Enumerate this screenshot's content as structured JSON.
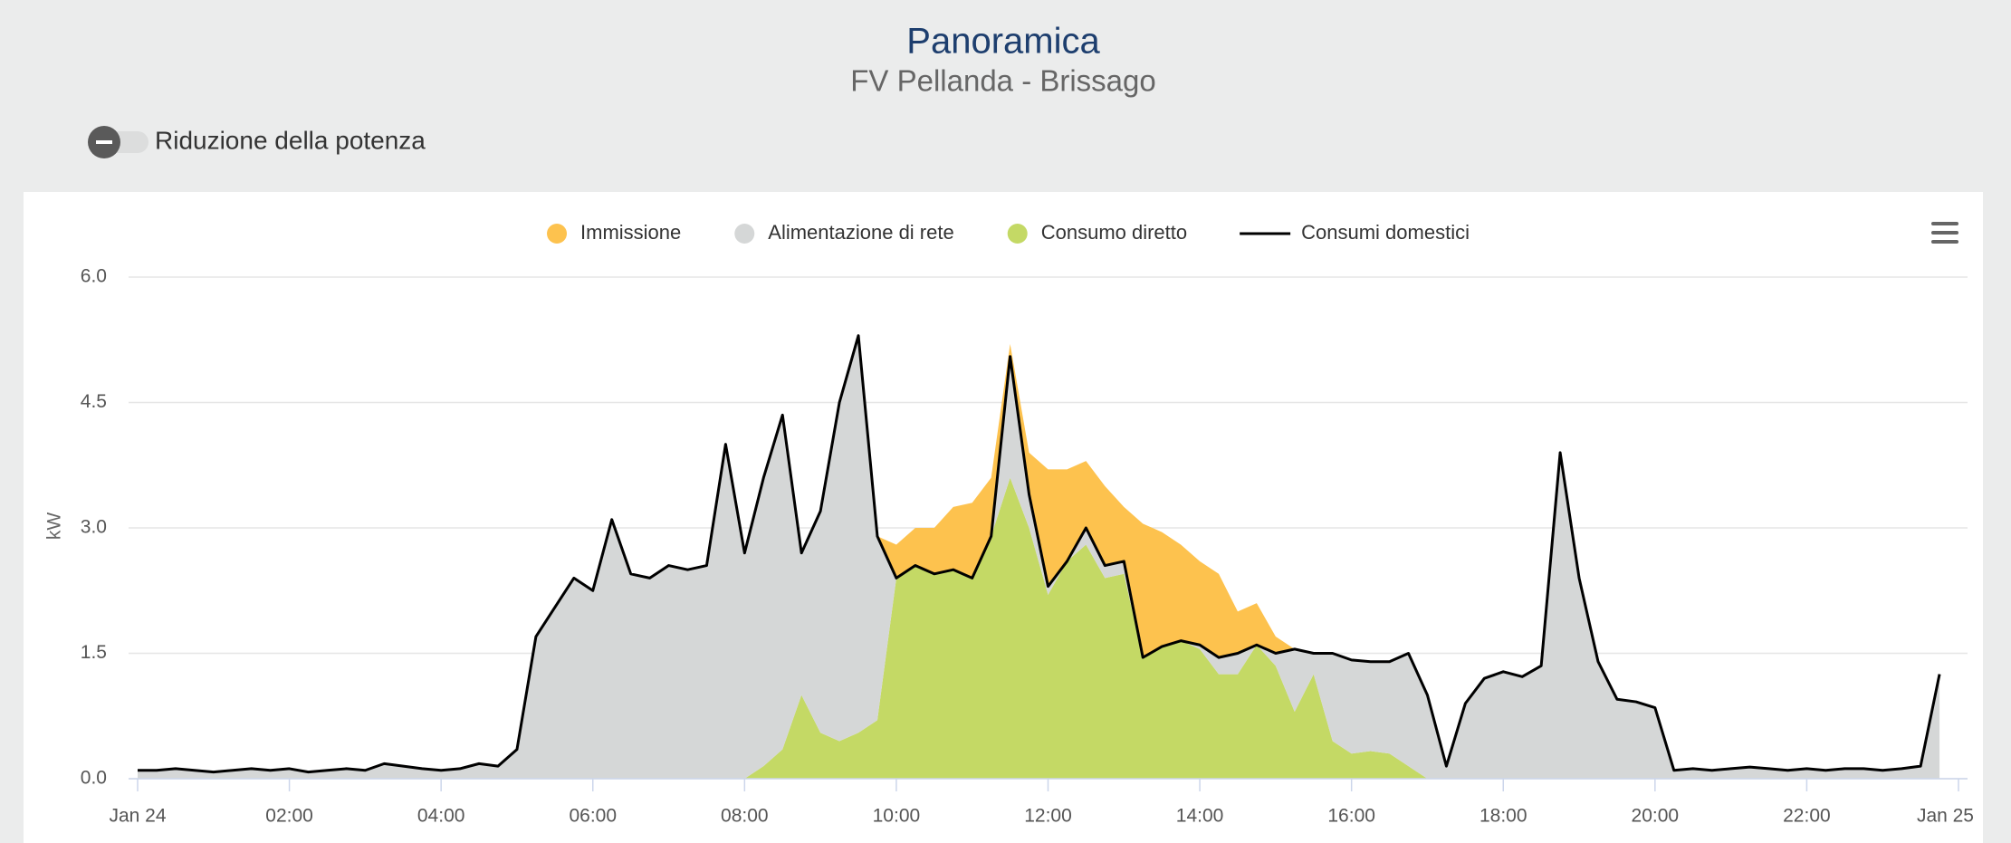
{
  "title": "Panoramica",
  "subtitle": "FV Pellanda - Brissago",
  "toggle_label": "Riduzione della potenza",
  "chart_data": {
    "type": "area",
    "stacked": true,
    "y_label": "kW",
    "grid": true,
    "legend": "top",
    "x": [
      0,
      0.25,
      0.5,
      0.75,
      1,
      1.25,
      1.5,
      1.75,
      2,
      2.25,
      2.5,
      2.75,
      3,
      3.25,
      3.5,
      3.75,
      4,
      4.25,
      4.5,
      4.75,
      5,
      5.25,
      5.5,
      5.75,
      6,
      6.25,
      6.5,
      6.75,
      7,
      7.25,
      7.5,
      7.75,
      8,
      8.25,
      8.5,
      8.75,
      9,
      9.25,
      9.5,
      9.75,
      10,
      10.25,
      10.5,
      10.75,
      11,
      11.25,
      11.5,
      11.75,
      12,
      12.25,
      12.5,
      12.75,
      13,
      13.25,
      13.5,
      13.75,
      14,
      14.25,
      14.5,
      14.75,
      15,
      15.25,
      15.5,
      15.75,
      16,
      16.25,
      16.5,
      16.75,
      17,
      17.25,
      17.5,
      17.75,
      18,
      18.25,
      18.5,
      18.75,
      19,
      19.25,
      19.5,
      19.75,
      20,
      20.25,
      20.5,
      20.75,
      21,
      21.25,
      21.5,
      21.75,
      22,
      22.25,
      22.5,
      22.75,
      23,
      23.25,
      23.5,
      23.75
    ],
    "xlim": [
      0,
      24
    ],
    "xticks": [
      {
        "value": 0,
        "label": "Jan 24"
      },
      {
        "value": 2,
        "label": "02:00"
      },
      {
        "value": 4,
        "label": "04:00"
      },
      {
        "value": 6,
        "label": "06:00"
      },
      {
        "value": 8,
        "label": "08:00"
      },
      {
        "value": 10,
        "label": "10:00"
      },
      {
        "value": 12,
        "label": "12:00"
      },
      {
        "value": 14,
        "label": "14:00"
      },
      {
        "value": 16,
        "label": "16:00"
      },
      {
        "value": 18,
        "label": "18:00"
      },
      {
        "value": 20,
        "label": "20:00"
      },
      {
        "value": 22,
        "label": "22:00"
      },
      {
        "value": 24,
        "label": "Jan 25"
      }
    ],
    "ylim": [
      0,
      6
    ],
    "yticks": [
      {
        "value": 0,
        "label": "0.0"
      },
      1.5,
      {
        "value": 3,
        "label": "3.0"
      },
      4.5,
      {
        "value": 6,
        "label": "6.0"
      }
    ],
    "series": [
      {
        "name": "Immissione",
        "type": "area",
        "color": "#fdc24e",
        "values": [
          0,
          0,
          0,
          0,
          0,
          0,
          0,
          0,
          0,
          0,
          0,
          0,
          0,
          0,
          0,
          0,
          0,
          0,
          0,
          0,
          0,
          0,
          0,
          0,
          0,
          0,
          0,
          0,
          0,
          0,
          0,
          0,
          0,
          0,
          0,
          0,
          0,
          0,
          0,
          0,
          0.4,
          0.45,
          0.55,
          0.75,
          0.9,
          0.7,
          0.15,
          0.5,
          1.4,
          1.1,
          0.8,
          0.95,
          0.65,
          1.6,
          1.37,
          1.15,
          1.0,
          1.0,
          0.5,
          0.5,
          0.2,
          0,
          0,
          0,
          0,
          0,
          0,
          0,
          0,
          0,
          0,
          0,
          0,
          0,
          0,
          0,
          0,
          0,
          0,
          0,
          0,
          0,
          0,
          0,
          0,
          0,
          0,
          0,
          0,
          0,
          0,
          0,
          0,
          0,
          0,
          0
        ]
      },
      {
        "name": "Alimentazione di rete",
        "type": "area",
        "color": "#d5d7d7",
        "values": [
          0.1,
          0.1,
          0.12,
          0.1,
          0.08,
          0.1,
          0.12,
          0.1,
          0.12,
          0.08,
          0.1,
          0.12,
          0.1,
          0.18,
          0.15,
          0.12,
          0.1,
          0.12,
          0.18,
          0.15,
          0.35,
          1.7,
          2.05,
          2.4,
          2.25,
          3.1,
          2.45,
          2.4,
          2.55,
          2.5,
          2.55,
          4.0,
          2.7,
          3.45,
          4.0,
          1.7,
          2.65,
          4.05,
          4.75,
          2.2,
          0,
          0,
          0,
          0,
          0,
          0,
          1.45,
          0.4,
          0.1,
          0,
          0.2,
          0.15,
          0.15,
          0,
          0,
          0,
          0.05,
          0.2,
          0.25,
          0,
          0.15,
          0.75,
          0.25,
          1.05,
          1.12,
          1.07,
          1.1,
          1.35,
          1.0,
          0.15,
          0.9,
          1.2,
          1.28,
          1.22,
          1.35,
          3.9,
          2.4,
          1.4,
          0.95,
          0.92,
          0.85,
          0.1,
          0.12,
          0.1,
          0.12,
          0.14,
          0.12,
          0.1,
          0.12,
          0.1,
          0.12,
          0.12,
          0.1,
          0.12,
          0.15,
          1.25
        ]
      },
      {
        "name": "Consumo diretto",
        "type": "area",
        "color": "#c4d965",
        "values": [
          0,
          0,
          0,
          0,
          0,
          0,
          0,
          0,
          0,
          0,
          0,
          0,
          0,
          0,
          0,
          0,
          0,
          0,
          0,
          0,
          0,
          0,
          0,
          0,
          0,
          0,
          0,
          0,
          0,
          0,
          0,
          0,
          0,
          0.15,
          0.35,
          1.0,
          0.55,
          0.45,
          0.55,
          0.7,
          2.4,
          2.55,
          2.45,
          2.5,
          2.4,
          2.9,
          3.6,
          3.0,
          2.2,
          2.6,
          2.8,
          2.4,
          2.45,
          1.45,
          1.58,
          1.65,
          1.55,
          1.25,
          1.25,
          1.6,
          1.35,
          0.8,
          1.25,
          0.45,
          0.3,
          0.33,
          0.3,
          0.15,
          0,
          0,
          0,
          0,
          0,
          0,
          0,
          0,
          0,
          0,
          0,
          0,
          0,
          0,
          0,
          0,
          0,
          0,
          0,
          0,
          0,
          0,
          0,
          0,
          0,
          0,
          0,
          0
        ]
      },
      {
        "name": "Consumi domestici",
        "type": "line",
        "color": "#000000",
        "values": [
          0.1,
          0.1,
          0.12,
          0.1,
          0.08,
          0.1,
          0.12,
          0.1,
          0.12,
          0.08,
          0.1,
          0.12,
          0.1,
          0.18,
          0.15,
          0.12,
          0.1,
          0.12,
          0.18,
          0.15,
          0.35,
          1.7,
          2.05,
          2.4,
          2.25,
          3.1,
          2.45,
          2.4,
          2.55,
          2.5,
          2.55,
          4.0,
          2.7,
          3.6,
          4.35,
          2.7,
          3.2,
          4.5,
          5.3,
          2.9,
          2.4,
          2.55,
          2.45,
          2.5,
          2.4,
          2.9,
          5.05,
          3.4,
          2.3,
          2.6,
          3.0,
          2.55,
          2.6,
          1.45,
          1.58,
          1.65,
          1.6,
          1.45,
          1.5,
          1.6,
          1.5,
          1.55,
          1.5,
          1.5,
          1.42,
          1.4,
          1.4,
          1.5,
          1.0,
          0.15,
          0.9,
          1.2,
          1.28,
          1.22,
          1.35,
          3.9,
          2.4,
          1.4,
          0.95,
          0.92,
          0.85,
          0.1,
          0.12,
          0.1,
          0.12,
          0.14,
          0.12,
          0.1,
          0.12,
          0.1,
          0.12,
          0.12,
          0.1,
          0.12,
          0.15,
          1.25
        ]
      }
    ]
  }
}
